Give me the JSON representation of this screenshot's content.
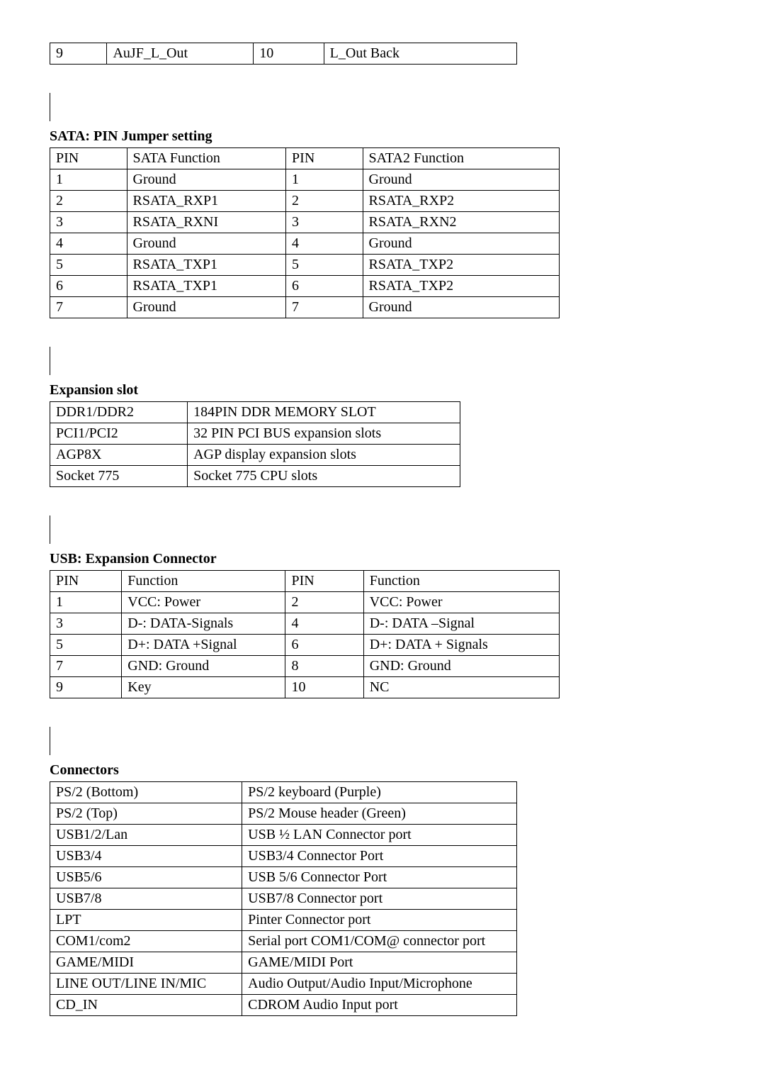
{
  "top_table": {
    "rows": [
      {
        "c1": "9",
        "c2": "AuJF_L_Out",
        "c3": "10",
        "c4": "L_Out Back"
      }
    ]
  },
  "sata": {
    "heading": "SATA: PIN Jumper setting",
    "header": {
      "c1": "PIN",
      "c2": "SATA Function",
      "c3": "PIN",
      "c4": "SATA2 Function"
    },
    "rows": [
      {
        "c1": "1",
        "c2": "Ground",
        "c3": "1",
        "c4": "Ground"
      },
      {
        "c1": "2",
        "c2": "RSATA_RXP1",
        "c3": "2",
        "c4": "RSATA_RXP2"
      },
      {
        "c1": "3",
        "c2": "RSATA_RXNI",
        "c3": "3",
        "c4": "RSATA_RXN2"
      },
      {
        "c1": "4",
        "c2": "Ground",
        "c3": "4",
        "c4": "Ground"
      },
      {
        "c1": "5",
        "c2": "RSATA_TXP1",
        "c3": "5",
        "c4": "RSATA_TXP2"
      },
      {
        "c1": "6",
        "c2": "RSATA_TXP1",
        "c3": "6",
        "c4": "RSATA_TXP2"
      },
      {
        "c1": "7",
        "c2": "Ground",
        "c3": "7",
        "c4": "Ground"
      }
    ]
  },
  "expansion": {
    "heading": "Expansion slot",
    "rows": [
      {
        "c1": "DDR1/DDR2",
        "c2": "184PIN DDR MEMORY SLOT"
      },
      {
        "c1": "PCI1/PCI2",
        "c2": "32 PIN PCI BUS expansion slots"
      },
      {
        "c1": "AGP8X",
        "c2": "AGP display expansion slots"
      },
      {
        "c1": "Socket 775",
        "c2": "Socket 775 CPU slots"
      }
    ]
  },
  "usb": {
    "heading": "USB: Expansion Connector",
    "header": {
      "c1": "PIN",
      "c2": "Function",
      "c3": "PIN",
      "c4": "Function"
    },
    "rows": [
      {
        "c1": "1",
        "c2": "VCC: Power",
        "c3": "2",
        "c4": "VCC: Power"
      },
      {
        "c1": "3",
        "c2": "D-: DATA-Signals",
        "c3": "4",
        "c4": "D-: DATA –Signal"
      },
      {
        "c1": "5",
        "c2": "D+: DATA +Signal",
        "c3": "6",
        "c4": "D+: DATA + Signals"
      },
      {
        "c1": "7",
        "c2": "GND: Ground",
        "c3": "8",
        "c4": "GND: Ground"
      },
      {
        "c1": "9",
        "c2": "Key",
        "c3": "10",
        "c4": "NC"
      }
    ]
  },
  "connectors": {
    "heading": "Connectors",
    "rows": [
      {
        "c1": "PS/2 (Bottom)",
        "c2": "PS/2 keyboard (Purple)"
      },
      {
        "c1": "PS/2 (Top)",
        "c2": "PS/2 Mouse header (Green)"
      },
      {
        "c1": "USB1/2/Lan",
        "c2": "USB ½ LAN Connector port"
      },
      {
        "c1": "USB3/4",
        "c2": "USB3/4 Connector Port"
      },
      {
        "c1": "USB5/6",
        "c2": "USB 5/6 Connector Port"
      },
      {
        "c1": "USB7/8",
        "c2": "USB7/8 Connector port"
      },
      {
        "c1": "LPT",
        "c2": "Pinter Connector port"
      },
      {
        "c1": "COM1/com2",
        "c2": "Serial port COM1/COM@ connector port"
      },
      {
        "c1": "GAME/MIDI",
        "c2": "GAME/MIDI Port"
      },
      {
        "c1": "LINE OUT/LINE IN/MIC",
        "c2": "Audio Output/Audio Input/Microphone"
      },
      {
        "c1": "CD_IN",
        "c2": "CDROM Audio Input port"
      }
    ]
  }
}
